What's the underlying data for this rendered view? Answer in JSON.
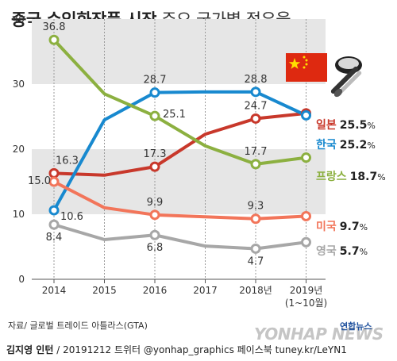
{
  "title": {
    "bold": "중국 수입화장품 시장",
    "light": "주요 국가별 점유율"
  },
  "chart_data": {
    "type": "line",
    "categories": [
      "2014",
      "2015",
      "2016",
      "2017",
      "2018년",
      "2019년"
    ],
    "category_sublabel": "(1~10월)",
    "ylim": [
      0,
      40
    ],
    "yticks": [
      0,
      10,
      20,
      30,
      40
    ],
    "grid": false,
    "shaded_bands": [
      [
        10,
        20
      ],
      [
        30,
        40
      ]
    ],
    "series": [
      {
        "name": "일본",
        "end_label": "25.5",
        "color": "#c8382b",
        "values": [
          16.3,
          16.0,
          17.3,
          22.3,
          24.7,
          25.5
        ],
        "labels": [
          {
            "i": 0,
            "text": "16.3"
          },
          {
            "i": 2,
            "text": "17.3"
          },
          {
            "i": 4,
            "text": "24.7"
          }
        ]
      },
      {
        "name": "한국",
        "end_label": "25.2",
        "color": "#1889cf",
        "values": [
          10.6,
          24.5,
          28.7,
          28.8,
          28.8,
          25.2
        ],
        "labels": [
          {
            "i": 0,
            "text": "10.6"
          },
          {
            "i": 2,
            "text": "28.7"
          },
          {
            "i": 4,
            "text": "28.8"
          }
        ]
      },
      {
        "name": "프랑스",
        "end_label": "18.7",
        "color": "#8cb040",
        "values": [
          36.8,
          28.5,
          25.1,
          20.5,
          17.7,
          18.7
        ],
        "labels": [
          {
            "i": 0,
            "text": "36.8"
          },
          {
            "i": 2,
            "text": "25.1"
          },
          {
            "i": 4,
            "text": "17.7"
          }
        ]
      },
      {
        "name": "미국",
        "end_label": "9.7",
        "color": "#f2755a",
        "values": [
          15.0,
          11.0,
          9.9,
          9.6,
          9.3,
          9.7
        ],
        "labels": [
          {
            "i": 0,
            "text": "15.0"
          },
          {
            "i": 2,
            "text": "9.9"
          },
          {
            "i": 4,
            "text": "9.3"
          }
        ]
      },
      {
        "name": "영국",
        "end_label": "5.7",
        "color": "#a7a7a7",
        "values": [
          8.4,
          6.1,
          6.8,
          5.1,
          4.7,
          5.7
        ],
        "labels": [
          {
            "i": 0,
            "text": "8.4"
          },
          {
            "i": 2,
            "text": "6.8"
          },
          {
            "i": 4,
            "text": "4.7"
          }
        ]
      }
    ],
    "end_label_unit": "%"
  },
  "source": "자료/ 글로벌 트레이드 아틀라스(GTA)",
  "footer": {
    "author": "김지영 인턴",
    "rest": " / 20191212  트위터 @yonhap_graphics  페이스북 tuney.kr/LeYN1"
  },
  "watermark": "YONHAP NEWS",
  "logo_text": "연합뉴스",
  "colors": {
    "flag_red": "#de2910",
    "flag_star": "#ffde00",
    "band_gray": "#e6e6e6"
  },
  "icons": [
    "china-flag-icon",
    "cosmetics-icon"
  ]
}
